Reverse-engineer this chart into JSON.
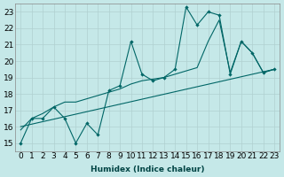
{
  "xlabel": "Humidex (Indice chaleur)",
  "background_color": "#c5e8e8",
  "grid_color": "#b0d0d0",
  "line_color": "#006666",
  "xlim": [
    -0.5,
    23.5
  ],
  "ylim": [
    14.5,
    23.5
  ],
  "yticks": [
    15,
    16,
    17,
    18,
    19,
    20,
    21,
    22,
    23
  ],
  "xtick_labels": [
    "0",
    "1",
    "2",
    "3",
    "4",
    "5",
    "6",
    "7",
    "8",
    "9",
    "10",
    "11",
    "12",
    "13",
    "14",
    "15",
    "16",
    "17",
    "18",
    "19",
    "20",
    "21",
    "22",
    "23"
  ],
  "series1_x": [
    0,
    1,
    2,
    3,
    4,
    5,
    6,
    7,
    8,
    9,
    10,
    11,
    12,
    13,
    14,
    15,
    16,
    17,
    18,
    19,
    20,
    21,
    22,
    23
  ],
  "series1_y": [
    15.0,
    16.5,
    16.5,
    17.2,
    16.5,
    15.0,
    16.2,
    15.5,
    18.2,
    18.5,
    21.2,
    19.2,
    18.8,
    19.0,
    19.5,
    23.3,
    22.2,
    23.0,
    22.8,
    19.2,
    21.2,
    20.5,
    19.3,
    19.5
  ],
  "series2_x": [
    0,
    1,
    2,
    3,
    4,
    5,
    6,
    7,
    8,
    9,
    10,
    11,
    12,
    13,
    14,
    15,
    16,
    17,
    18,
    19,
    20,
    21,
    22,
    23
  ],
  "series2_y": [
    15.8,
    16.5,
    16.8,
    17.2,
    17.5,
    17.5,
    17.7,
    17.9,
    18.1,
    18.3,
    18.6,
    18.8,
    18.9,
    19.0,
    19.2,
    19.4,
    19.6,
    21.2,
    22.5,
    19.3,
    21.2,
    20.5,
    19.3,
    19.5
  ],
  "series3_x": [
    0,
    23
  ],
  "series3_y": [
    16.0,
    19.5
  ],
  "font_size": 6.5
}
